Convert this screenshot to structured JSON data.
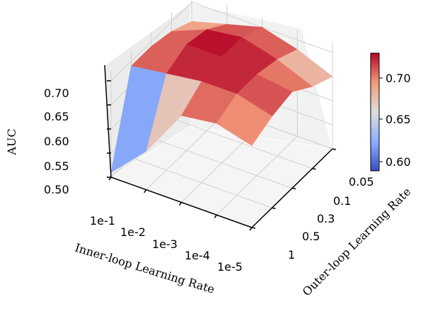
{
  "chart_data": {
    "type": "surface3d",
    "title": "",
    "xlabel": "Inner-loop Learning Rate",
    "ylabel": "Outer-loop Learning Rate",
    "zlabel": "AUC",
    "x_ticks": [
      "1e-1",
      "1e-2",
      "1e-3",
      "1e-4",
      "1e-5"
    ],
    "y_ticks": [
      "1",
      "0.5",
      "0.3",
      "0.1",
      "0.05"
    ],
    "z_ticks": [
      "0.50",
      "0.55",
      "0.60",
      "0.65",
      "0.70"
    ],
    "zlim": [
      0.5,
      0.72
    ],
    "colormap": "coolwarm",
    "colorbar": {
      "ticks": [
        "0.60",
        "0.65",
        "0.70"
      ],
      "range": [
        0.59,
        0.72
      ]
    },
    "z_values": [
      [
        0.51,
        0.58,
        0.68,
        0.69,
        0.67
      ],
      [
        0.69,
        0.7,
        0.71,
        0.71,
        0.69
      ],
      [
        0.69,
        0.72,
        0.72,
        0.71,
        0.7
      ],
      [
        0.68,
        0.71,
        0.72,
        0.7,
        0.67
      ],
      [
        0.66,
        0.68,
        0.7,
        0.68,
        0.65
      ]
    ],
    "z_values_note_rows": "rows = outer-loop LR (1, 0.5, 0.3, 0.1, 0.05); cols = inner-loop LR (1e-1 … 1e-5)",
    "grid": true
  }
}
